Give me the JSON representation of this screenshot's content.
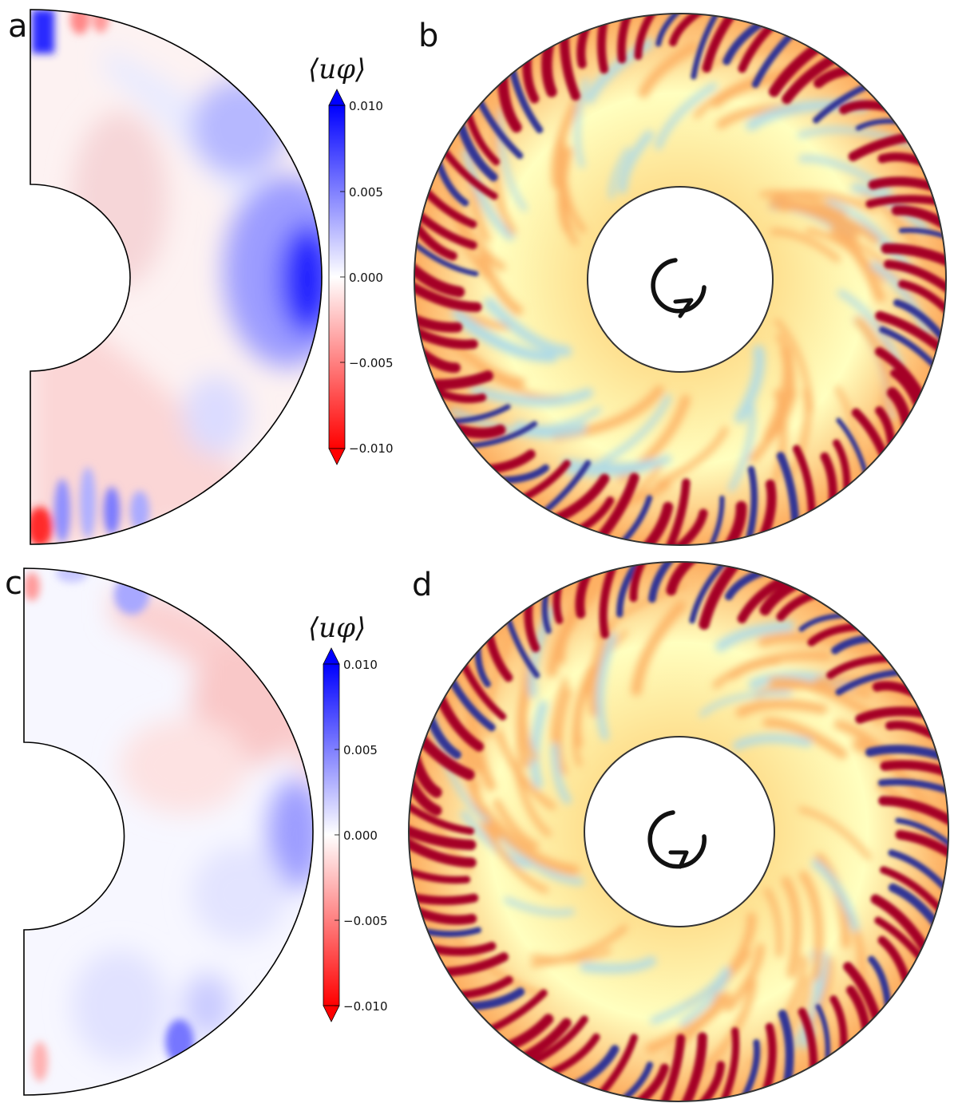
{
  "panels": [
    {
      "id": "a",
      "label": "a",
      "colorbar": {
        "title": "⟨uφ⟩",
        "ticks": [
          "0.010",
          "0.005",
          "0.000",
          "−0.005",
          "−0.010"
        ],
        "top_color": "#0000ff",
        "bottom_color": "#ff0000"
      }
    },
    {
      "id": "b",
      "label": "b"
    },
    {
      "id": "c",
      "label": "c",
      "colorbar": {
        "title": "⟨uφ⟩",
        "ticks": [
          "0.010",
          "0.005",
          "0.000",
          "−0.005",
          "−0.010"
        ],
        "top_color": "#0000ff",
        "bottom_color": "#ff0000"
      }
    },
    {
      "id": "d",
      "label": "d"
    }
  ],
  "colors": {
    "blue": "#0000ff",
    "red": "#ff0000",
    "dark_red": "#a50026",
    "dark_blue": "#313695",
    "light_yellow": "#ffffbf",
    "orange": "#fdae61",
    "light_blue": "#abd9e9"
  },
  "icons": [
    "rotation-arrow-icon"
  ]
}
